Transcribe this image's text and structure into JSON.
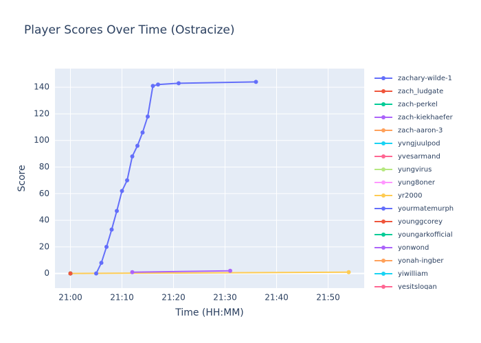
{
  "chart_data": {
    "type": "line",
    "title": "Player Scores Over Time (Ostracize)",
    "x_label": "Time (HH:MM)",
    "y_label": "Score",
    "xlim": [
      "20:57",
      "21:57"
    ],
    "xticks": [
      "21:00",
      "21:10",
      "21:20",
      "21:30",
      "21:40",
      "21:50"
    ],
    "ylim": [
      -11,
      154
    ],
    "yticks": [
      0,
      20,
      40,
      60,
      80,
      100,
      120,
      140
    ],
    "grid": true,
    "series": [
      {
        "name": "zachary-wilde-1",
        "color": "#636efa",
        "x": [
          "21:05",
          "21:06",
          "21:07",
          "21:08",
          "21:09",
          "21:10",
          "21:11",
          "21:12",
          "21:13",
          "21:14",
          "21:15",
          "21:16",
          "21:17",
          "21:21",
          "21:36"
        ],
        "values": [
          0,
          8,
          20,
          33,
          47,
          62,
          70,
          88,
          96,
          106,
          118,
          141,
          142,
          143,
          144
        ]
      },
      {
        "name": "zach_ludgate",
        "color": "#EF553B",
        "x": [
          "21:00"
        ],
        "values": [
          0
        ]
      },
      {
        "name": "zach-perkel",
        "color": "#00cc96",
        "x": [
          "21:00"
        ],
        "values": [
          0
        ]
      },
      {
        "name": "zach-kiekhaefer",
        "color": "#ab63fa",
        "x": [
          "21:12",
          "21:31"
        ],
        "values": [
          1,
          2
        ]
      },
      {
        "name": "zach-aaron-3",
        "color": "#FFA15A",
        "x": [
          "21:00"
        ],
        "values": [
          0
        ]
      },
      {
        "name": "yvngjuulpod",
        "color": "#19d3f3",
        "x": [
          "21:00"
        ],
        "values": [
          0
        ]
      },
      {
        "name": "yvesarmand",
        "color": "#FF6692",
        "x": [
          "21:00"
        ],
        "values": [
          0
        ]
      },
      {
        "name": "yungvirus",
        "color": "#B6E880",
        "x": [
          "21:00"
        ],
        "values": [
          0
        ]
      },
      {
        "name": "yung8oner",
        "color": "#FF97FF",
        "x": [
          "21:00"
        ],
        "values": [
          0
        ]
      },
      {
        "name": "yr2000",
        "color": "#FECB52",
        "x": [
          "21:00",
          "21:54"
        ],
        "values": [
          0,
          1
        ]
      },
      {
        "name": "yourmatemurph",
        "color": "#636efa",
        "x": [
          "21:00"
        ],
        "values": [
          0
        ]
      },
      {
        "name": "younggcorey",
        "color": "#EF553B",
        "x": [
          "21:00"
        ],
        "values": [
          0
        ]
      },
      {
        "name": "youngarkofficial",
        "color": "#00cc96",
        "x": [
          "21:00"
        ],
        "values": [
          0
        ]
      },
      {
        "name": "yonwond",
        "color": "#ab63fa",
        "x": [
          "21:00"
        ],
        "values": [
          0
        ]
      },
      {
        "name": "yonah-ingber",
        "color": "#FFA15A",
        "x": [
          "21:00"
        ],
        "values": [
          0
        ]
      },
      {
        "name": "yiwilliam",
        "color": "#19d3f3",
        "x": [
          "21:00"
        ],
        "values": [
          0
        ]
      },
      {
        "name": "yesitslogan",
        "color": "#FF6692",
        "x": [
          "21:00"
        ],
        "values": [
          0
        ]
      }
    ]
  }
}
